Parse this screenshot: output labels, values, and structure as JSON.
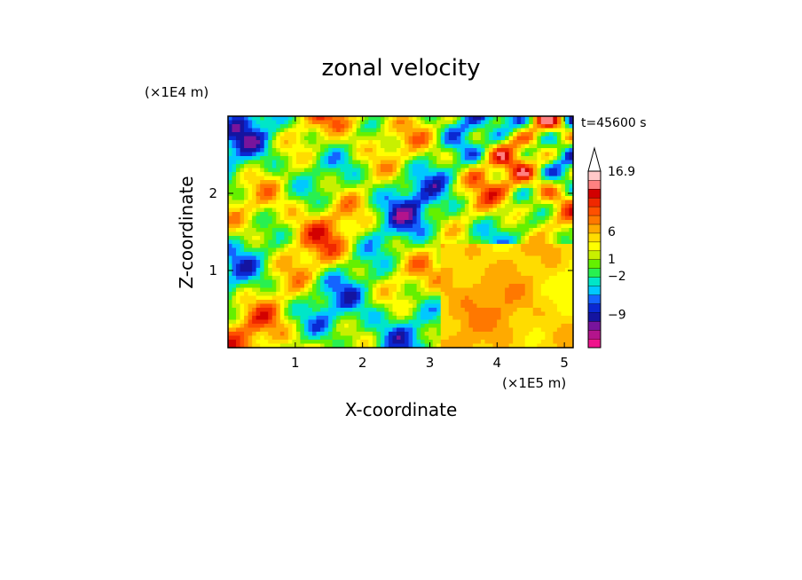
{
  "chart_data": {
    "type": "heatmap",
    "title": "zonal velocity",
    "xlabel": "X-coordinate",
    "ylabel": "Z-coordinate",
    "x_unit": "(×1E5 m)",
    "y_unit": "(×1E4 m)",
    "time_label": "t=45600 s",
    "xlim": [
      0,
      5.13
    ],
    "ylim": [
      0,
      3.0
    ],
    "x_ticks": [
      "1",
      "2",
      "3",
      "4",
      "5"
    ],
    "x_tick_values": [
      1,
      2,
      3,
      4,
      5
    ],
    "y_ticks": [
      "1",
      "2"
    ],
    "y_tick_values": [
      1,
      2
    ],
    "colorbar": {
      "labels": [
        "16.9",
        "6",
        "1",
        "−2",
        "−9"
      ],
      "label_values": [
        16.9,
        6,
        1,
        -2,
        -9
      ],
      "colors": [
        "#f0148c",
        "#b4148c",
        "#78149c",
        "#1414a0",
        "#0a28d2",
        "#1464ff",
        "#00c8ff",
        "#00e6c8",
        "#28f050",
        "#64f000",
        "#c8f000",
        "#ffff00",
        "#ffdc00",
        "#ffaa00",
        "#ff7800",
        "#ff5000",
        "#f02800",
        "#d20000",
        "#ff8080",
        "#ffc8c8"
      ],
      "extend_top": true
    }
  }
}
